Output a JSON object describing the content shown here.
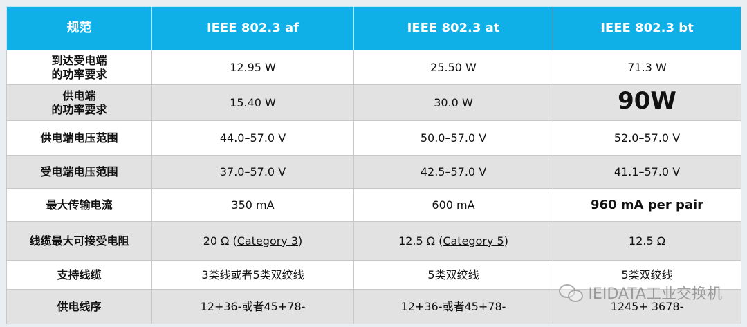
{
  "table": {
    "headers": [
      "规范",
      "IEEE 802.3 af",
      "IEEE 802.3 at",
      "IEEE 802.3 bt"
    ],
    "rows": [
      {
        "label_line1": "到达受电端",
        "label_line2": "的功率要求",
        "af": "12.95 W",
        "at": "25.50 W",
        "bt": "71.3 W"
      },
      {
        "label_line1": "供电端",
        "label_line2": "的功率要求",
        "af": "15.40 W",
        "at": "30.0 W",
        "bt": "90W"
      },
      {
        "label": "供电端电压范围",
        "af": "44.0–57.0 V",
        "at": "50.0–57.0 V",
        "bt": "52.0–57.0 V"
      },
      {
        "label": "受电端电压范围",
        "af": "37.0–57.0 V",
        "at": "42.5–57.0 V",
        "bt": "41.1–57.0 V"
      },
      {
        "label": "最大传输电流",
        "af": "350 mA",
        "at": "600 mA",
        "bt": "960 mA per pair"
      },
      {
        "label": "线缆最大可接受电阻",
        "af_prefix": "20 Ω (",
        "af_link": "Category 3",
        "af_suffix": ")",
        "at_prefix": "12.5 Ω (",
        "at_link": "Category 5",
        "at_suffix": ")",
        "bt": "12.5 Ω"
      },
      {
        "label": "支持线缆",
        "af": "3类线或者5类双绞线",
        "at": "5类双绞线",
        "bt": "5类双绞线"
      },
      {
        "label": "供电线序",
        "af": "12+36-或者45+78-",
        "at": "12+36-或者45+78-",
        "bt": "1245+ 3678-"
      }
    ]
  },
  "watermark": {
    "text": "IEIDATA工业交换机",
    "icon": "wechat-icon"
  },
  "colors": {
    "header_bg": "#0fb0e8",
    "alt_row_bg": "#e2e2e2"
  }
}
